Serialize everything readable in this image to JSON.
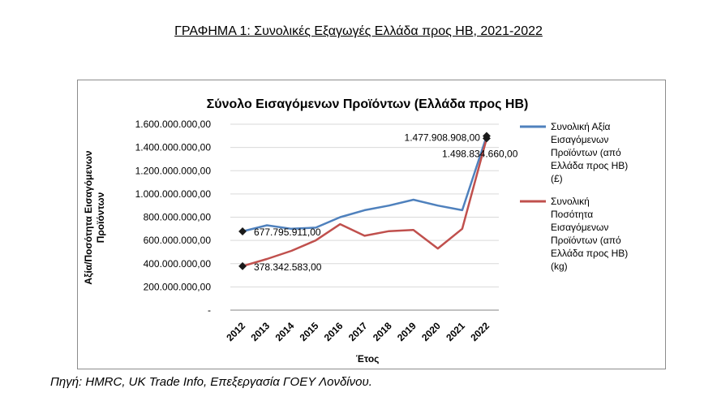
{
  "heading": "ΓΡΑΦΗΜΑ 1: Συνολικές Εξαγωγές Ελλάδα προς ΗΒ, 2021-2022",
  "source": "Πηγή: HMRC, UK Trade Info, Επεξεργασία ΓΟΕΥ Λονδίνου.",
  "chart_data": {
    "type": "line",
    "title": "Σύνολο Εισαγόμενων Προϊόντων (Ελλάδα προς ΗΒ)",
    "xlabel": "Έτος",
    "ylabel_lines": [
      "Αξία/Ποσότητα Εισαγόμενων",
      "Προϊόντων"
    ],
    "categories": [
      "2012",
      "2013",
      "2014",
      "2015",
      "2016",
      "2017",
      "2018",
      "2019",
      "2020",
      "2021",
      "2022"
    ],
    "ylim": [
      0,
      1600000000
    ],
    "yticks": [
      {
        "value": 0,
        "label": "-"
      },
      {
        "value": 200000000,
        "label": "200.000.000,00"
      },
      {
        "value": 400000000,
        "label": "400.000.000,00"
      },
      {
        "value": 600000000,
        "label": "600.000.000,00"
      },
      {
        "value": 800000000,
        "label": "800.000.000,00"
      },
      {
        "value": 1000000000,
        "label": "1.000.000.000,00"
      },
      {
        "value": 1200000000,
        "label": "1.200.000.000,00"
      },
      {
        "value": 1400000000,
        "label": "1.400.000.000,00"
      },
      {
        "value": 1600000000,
        "label": "1.600.000.000,00"
      }
    ],
    "grid": true,
    "legend_position": "right",
    "series": [
      {
        "name_lines": [
          "Συνολική Αξία",
          "Εισαγόμενων",
          "Προϊόντων (από",
          "Ελλάδα προς ΗΒ)",
          "(£)"
        ],
        "color": "#4f81bd",
        "values": [
          677795911,
          730000000,
          700000000,
          710000000,
          800000000,
          860000000,
          900000000,
          950000000,
          900000000,
          860000000,
          1498834660
        ]
      },
      {
        "name_lines": [
          "Συνολική",
          "Ποσότητα",
          "Εισαγόμενων",
          "Προϊόντων (από",
          "Ελλάδα προς ΗΒ)",
          "(kg)"
        ],
        "color": "#c0504d",
        "values": [
          378342583,
          440000000,
          510000000,
          600000000,
          740000000,
          640000000,
          680000000,
          690000000,
          530000000,
          700000000,
          1477908908
        ]
      }
    ],
    "annotations": [
      {
        "series": 0,
        "index": 0,
        "text": "677.795.911,00"
      },
      {
        "series": 1,
        "index": 0,
        "text": "378.342.583,00"
      },
      {
        "series": 1,
        "index": 10,
        "text": "1.477.908.908,00"
      },
      {
        "series": 0,
        "index": 10,
        "text": "1.498.834.660,00"
      }
    ]
  }
}
